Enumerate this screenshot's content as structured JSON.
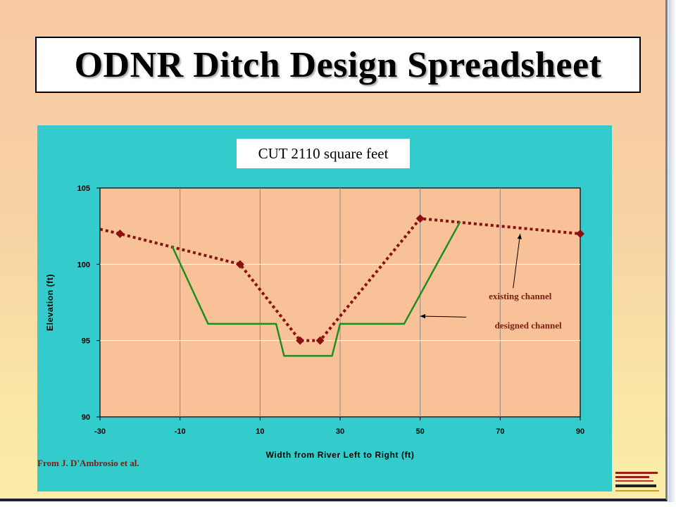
{
  "slide": {
    "title": "ODNR Ditch Design Spreadsheet",
    "credit": "From J. D'Ambrosio et al."
  },
  "chart_data": {
    "type": "line",
    "title": "CUT 2110 square feet",
    "xlabel": "Width from River Left to Right (ft)",
    "ylabel": "Elevation (ft)",
    "xlim": [
      -30,
      90
    ],
    "ylim": [
      90,
      105
    ],
    "xticks": [
      -30,
      -10,
      10,
      30,
      50,
      70,
      90
    ],
    "yticks": [
      90,
      95,
      100,
      105
    ],
    "grid": true,
    "series": [
      {
        "name": "existing channel",
        "style": "dotted",
        "color": "#8b1010",
        "markers": true,
        "x": [
          -30,
          -25,
          5,
          20,
          25,
          50,
          90
        ],
        "y": [
          102.3,
          102,
          100,
          95,
          95,
          103,
          102
        ]
      },
      {
        "name": "designed channel",
        "style": "solid",
        "color": "#1e8f1e",
        "markers": false,
        "x": [
          -12,
          -3,
          14,
          16,
          28,
          30,
          46,
          60
        ],
        "y": [
          101.2,
          96.1,
          96.1,
          94,
          94,
          96.1,
          96.1,
          102.8
        ]
      }
    ],
    "annotations": [
      {
        "text": "existing channel",
        "x": 75,
        "y": 97.7,
        "arrow_to": [
          75,
          102
        ]
      },
      {
        "text": "designed channel",
        "x": 77,
        "y": 95.8,
        "arrow_to": [
          50,
          96.6
        ]
      }
    ],
    "colors": {
      "plot_bg": "#f8c197",
      "panel_bg": "#33cbcb"
    }
  }
}
